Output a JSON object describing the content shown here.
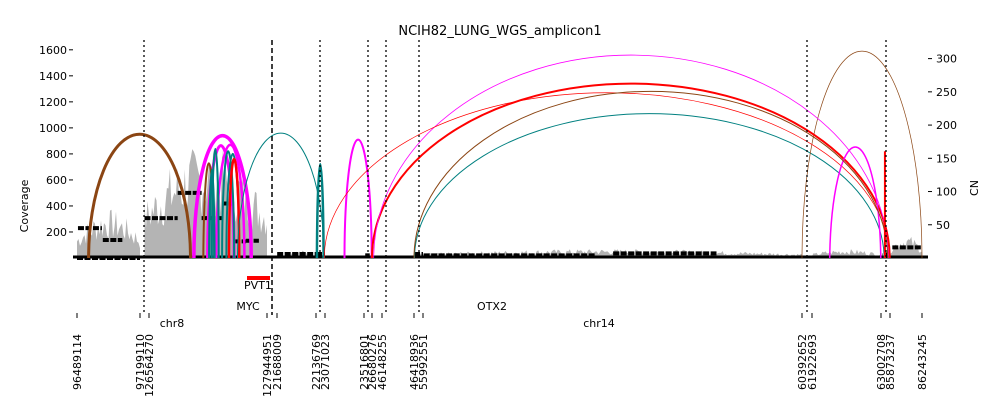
{
  "chart_data": {
    "type": "area",
    "title": "NCIH82_LUNG_WGS_amplicon1",
    "ylabel": "Coverage",
    "y2label": "CN",
    "ylim": [
      0,
      1660
    ],
    "y2lim": [
      0,
      325
    ],
    "yticks": [
      200,
      400,
      600,
      800,
      1000,
      1200,
      1400,
      1600
    ],
    "y2ticks": [
      50,
      100,
      150,
      200,
      250,
      300
    ],
    "grid": false,
    "colors": {
      "coverage": "#b4b4b4",
      "cn": "#000000",
      "del": "#ff0000",
      "dup": "#ff00ff",
      "inv_a": "#8b4513",
      "inv_b": "#008080",
      "gene": "#ff0000"
    },
    "chromosomes": [
      {
        "name": "chr8",
        "start": 96489114,
        "end": 127944951
      },
      {
        "name": "chr14",
        "start": 21688009,
        "end": 86243245
      }
    ],
    "breakpoint_ticks": [
      "96489114",
      "97199110",
      "126564270",
      "127944951",
      "21688009",
      "22136769",
      "23071023",
      "23516801",
      "26680276",
      "46148255",
      "46418936",
      "55992551",
      "60392652",
      "61922693",
      "63002708",
      "85873237",
      "86243245"
    ],
    "genes": [
      {
        "name": "PVT1",
        "chrom": "chr8",
        "start": 127794533,
        "end": 128101253
      },
      {
        "name": "MYC",
        "chrom": "chr8",
        "start": 127736231,
        "end": 127742951
      },
      {
        "name": "OTX2",
        "chrom": "chr14",
        "start": 56800000,
        "end": 56810479
      }
    ],
    "cn_segments": [
      {
        "chrom": "chr8",
        "start": 96489114,
        "end": 97199110,
        "cn": 0
      },
      {
        "chrom": "chr8",
        "start": 96500000,
        "end": 96770000,
        "cn": 45
      },
      {
        "chrom": "chr8",
        "start": 96780000,
        "end": 97000000,
        "cn": 27
      },
      {
        "chrom": "chr8",
        "start": 126564270,
        "end": 126900000,
        "cn": 60
      },
      {
        "chrom": "chr8",
        "start": 126900000,
        "end": 127180000,
        "cn": 98
      },
      {
        "chrom": "chr8",
        "start": 127180000,
        "end": 127420000,
        "cn": 60
      },
      {
        "chrom": "chr8",
        "start": 127420000,
        "end": 127560000,
        "cn": 82
      },
      {
        "chrom": "chr8",
        "start": 127560000,
        "end": 127700000,
        "cn": 25
      },
      {
        "chrom": "chr8",
        "start": 127700000,
        "end": 127850000,
        "cn": 26
      },
      {
        "chrom": "chr14",
        "start": 21690000,
        "end": 22136769,
        "cn": 6
      },
      {
        "chrom": "chr14",
        "start": 22136769,
        "end": 23071023,
        "cn": 6
      },
      {
        "chrom": "chr14",
        "start": 24000000,
        "end": 25800000,
        "cn": 4
      },
      {
        "chrom": "chr14",
        "start": 46418936,
        "end": 55992551,
        "cn": 6
      },
      {
        "chrom": "chr14",
        "start": 56000000,
        "end": 58000000,
        "cn": 4
      },
      {
        "chrom": "chr14",
        "start": 58200000,
        "end": 59400000,
        "cn": 7
      },
      {
        "chrom": "chr14",
        "start": 66000000,
        "end": 67200000,
        "cn": 4
      },
      {
        "chrom": "chr14",
        "start": 74500000,
        "end": 77000000,
        "cn": 6
      },
      {
        "chrom": "chr14",
        "start": 77000000,
        "end": 79000000,
        "cn": 5
      },
      {
        "chrom": "chr14",
        "start": 85900000,
        "end": 86243245,
        "cn": 16
      }
    ],
    "coverage_regions": [
      {
        "chrom": "chr8",
        "start": 96489114,
        "end": 97199110,
        "peak": 380
      },
      {
        "chrom": "chr8",
        "start": 126564270,
        "end": 127944951,
        "peak": 880
      },
      {
        "chrom": "chr14",
        "start": 21688009,
        "end": 23071023,
        "peak": 60
      },
      {
        "chrom": "chr14",
        "start": 46418936,
        "end": 60392652,
        "peak": 70
      },
      {
        "chrom": "chr14",
        "start": 61922693,
        "end": 63002708,
        "peak": 70
      },
      {
        "chrom": "chr14",
        "start": 85873237,
        "end": 86243245,
        "peak": 180
      }
    ],
    "breakpoints": [
      {
        "from": 96620000,
        "to": 127050000,
        "coverage": 950,
        "type": "inv_a",
        "weight": 3
      },
      {
        "from": 127090000,
        "to": 127760000,
        "coverage": 940,
        "type": "dup",
        "weight": 3.5
      },
      {
        "from": 127250000,
        "to": 127560000,
        "coverage": 860,
        "type": "dup",
        "weight": 3
      },
      {
        "from": 127350000,
        "to": 127680000,
        "coverage": 870,
        "type": "dup",
        "weight": 2.5
      },
      {
        "from": 127200000,
        "to": 127330000,
        "coverage": 840,
        "type": "inv_a",
        "weight": 2
      },
      {
        "from": 127270000,
        "to": 127330000,
        "coverage": 840,
        "type": "inv_b",
        "weight": 2.5
      },
      {
        "from": 127300000,
        "to": 127380000,
        "coverage": 840,
        "type": "inv_b",
        "weight": 2
      },
      {
        "from": 127420000,
        "to": 127560000,
        "coverage": 820,
        "type": "inv_b",
        "weight": 2
      },
      {
        "from": 127470000,
        "to": 127620000,
        "coverage": 800,
        "type": "inv_b",
        "weight": 2
      },
      {
        "from": 127500000,
        "to": 127620000,
        "coverage": 760,
        "type": "del",
        "weight": 2.5
      },
      {
        "from": 127600000,
        "to": 22980000,
        "coverage": 960,
        "type": "inv_b",
        "weight": 1
      },
      {
        "from": 22230000,
        "to": 22930000,
        "coverage": 870,
        "type": "inv_b",
        "weight": 2.5
      },
      {
        "from": 23100000,
        "to": 26550000,
        "coverage": 910,
        "type": "dup",
        "weight": 2
      },
      {
        "from": 46900000,
        "to": 70800000,
        "coverage": 1110,
        "type": "inv_b",
        "weight": 1
      },
      {
        "from": 60392652,
        "to": 86243245,
        "coverage": 1590,
        "type": "inv_a",
        "weight": 0.7
      },
      {
        "from": 26680276,
        "to": 85100000,
        "coverage": 1340,
        "type": "del",
        "weight": 2
      },
      {
        "from": 30000000,
        "to": 81500000,
        "coverage": 1560,
        "type": "dup",
        "weight": 0.8
      },
      {
        "from": 23000000,
        "to": 84000000,
        "coverage": 1270,
        "type": "del",
        "weight": 0.7
      },
      {
        "from": 62200000,
        "to": 63000000,
        "coverage": 910,
        "type": "dup",
        "weight": 1.5
      },
      {
        "from": 46418936,
        "to": 80000000,
        "coverage": 1280,
        "type": "inv_a",
        "weight": 1
      }
    ],
    "spikes": [
      {
        "chrom": "chr14",
        "pos": 73000000,
        "coverage": 820,
        "type": "del"
      }
    ]
  }
}
